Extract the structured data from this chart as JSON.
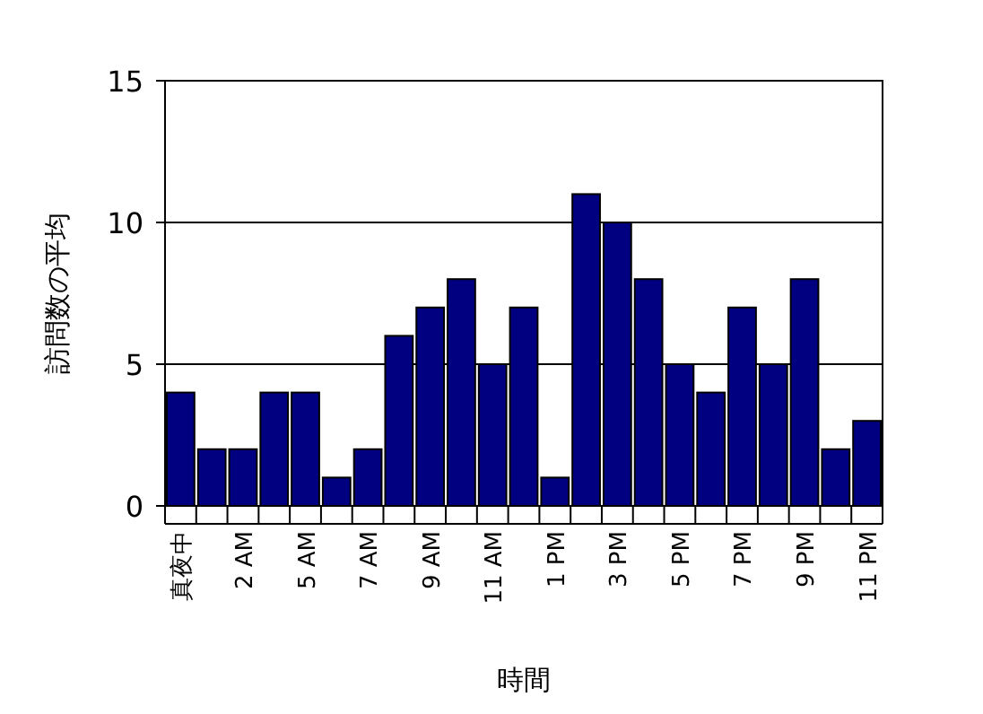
{
  "chart_data": {
    "type": "bar",
    "xlabel": "時間",
    "ylabel": "訪問数の平均",
    "categories": [
      "真夜中",
      null,
      "2 AM",
      null,
      "5 AM",
      null,
      "7 AM",
      null,
      "9 AM",
      null,
      "11 AM",
      null,
      "1 PM",
      null,
      "3 PM",
      null,
      "5 PM",
      null,
      "7 PM",
      null,
      "9 PM",
      null,
      "11 PM"
    ],
    "values": [
      4,
      2,
      2,
      4,
      4,
      1,
      2,
      6,
      7,
      8,
      5,
      7,
      1,
      11,
      10,
      8,
      5,
      4,
      7,
      5,
      8,
      2,
      3
    ],
    "color": "#000080",
    "ylim": [
      0,
      15
    ],
    "yticks": [
      0,
      5,
      10,
      15
    ],
    "grid": "y"
  }
}
